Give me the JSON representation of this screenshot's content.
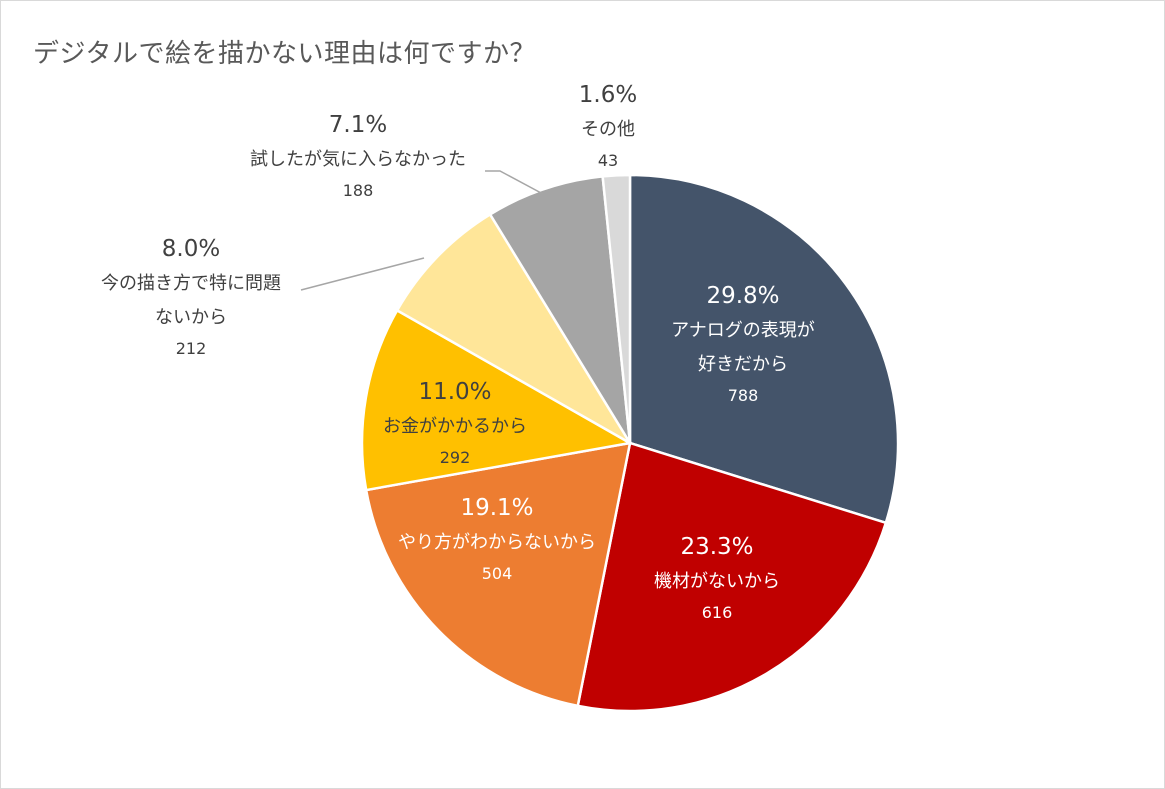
{
  "chart_data": {
    "type": "pie",
    "title": "デジタルで絵を描かない理由は何ですか？",
    "legend": "none",
    "label_colors": {
      "inside_light": "#ffffff",
      "inside_dark": "#404040",
      "outside": "#404040"
    },
    "slices": [
      {
        "pct_label": "29.8%",
        "lines": [
          "アナログの表現が",
          "好きだから"
        ],
        "count_label": "788",
        "value": 788,
        "color": "#44546a",
        "text_color": "#ffffff",
        "placement": "inside"
      },
      {
        "pct_label": "23.3%",
        "lines": [
          "機材がないから"
        ],
        "count_label": "616",
        "value": 616,
        "color": "#c00000",
        "text_color": "#ffffff",
        "placement": "inside"
      },
      {
        "pct_label": "19.1%",
        "lines": [
          "やり方がわからないから"
        ],
        "count_label": "504",
        "value": 504,
        "color": "#ed7d31",
        "text_color": "#ffffff",
        "placement": "inside"
      },
      {
        "pct_label": "11.0%",
        "lines": [
          "お金がかかるから"
        ],
        "count_label": "292",
        "value": 292,
        "color": "#ffc000",
        "text_color": "#404040",
        "placement": "inside"
      },
      {
        "pct_label": "8.0%",
        "lines": [
          "今の描き方で特に問題",
          "ないから"
        ],
        "count_label": "212",
        "value": 212,
        "color": "#ffe699",
        "text_color": "#404040",
        "placement": "outside"
      },
      {
        "pct_label": "7.1%",
        "lines": [
          "試したが気に入らなかった"
        ],
        "count_label": "188",
        "value": 188,
        "color": "#a5a5a5",
        "text_color": "#404040",
        "placement": "outside"
      },
      {
        "pct_label": "1.6%",
        "lines": [
          "その他"
        ],
        "count_label": "43",
        "value": 43,
        "color": "#d9d9d9",
        "text_color": "#404040",
        "placement": "outside"
      }
    ]
  }
}
